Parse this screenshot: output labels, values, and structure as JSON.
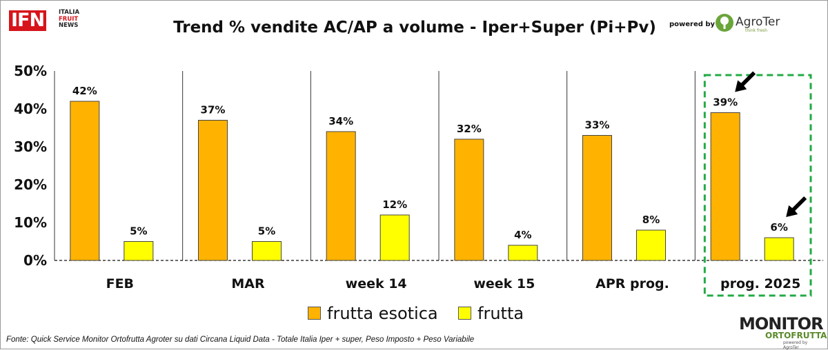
{
  "header": {
    "logo_main": "IFN",
    "logo_sub": [
      "ITALIA",
      "FRUIT",
      "NEWS"
    ],
    "powered_by": "powered by",
    "agroter_name": "AgroTer",
    "agroter_tagline": "think fresh"
  },
  "footer": {
    "source": "Fonte: Quick Service Monitor Ortofrutta Agroter su dati Circana Liquid Data - Totale Italia Iper + super, Peso Imposto + Peso Variabile",
    "monitor_main": "MONITOR",
    "monitor_sub": "ORTOFRUTTA",
    "monitor_by": "powered by AgroTer"
  },
  "colors": {
    "esotica": "#FFB300",
    "frutta": "#FFFF00",
    "highlight_box": "#22AA44",
    "arrow": "#000000"
  },
  "chart_data": {
    "type": "bar",
    "title": "Trend % vendite AC/AP a volume -  Iper+Super (Pi+Pv)",
    "categories": [
      "FEB",
      "MAR",
      "week 14",
      "week 15",
      "APR prog.",
      "prog. 2025"
    ],
    "series": [
      {
        "name": "frutta esotica",
        "values": [
          42,
          37,
          34,
          32,
          33,
          39
        ],
        "labels": [
          "42%",
          "37%",
          "34%",
          "32%",
          "33%",
          "39%"
        ]
      },
      {
        "name": "frutta",
        "values": [
          5,
          5,
          12,
          4,
          8,
          6
        ],
        "labels": [
          "5%",
          "5%",
          "12%",
          "4%",
          "8%",
          "6%"
        ]
      }
    ],
    "y_ticks": [
      "0%",
      "10%",
      "20%",
      "30%",
      "40%",
      "50%"
    ],
    "ylim": [
      0,
      50
    ],
    "xlabel": "",
    "ylabel": "",
    "legend_position": "bottom",
    "highlighted_category": "prog. 2025",
    "grid": false
  }
}
